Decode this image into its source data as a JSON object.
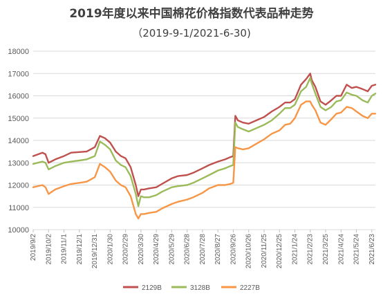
{
  "chart_data": {
    "type": "line",
    "title": "2019年度以来中国棉花价格指数代表品种走势",
    "subtitle": "（2019-9-1/2021-6-30)",
    "xlabel": "",
    "ylabel": "",
    "ylim": [
      10000,
      18000
    ],
    "yticks": [
      10000,
      11000,
      12000,
      13000,
      14000,
      15000,
      16000,
      17000,
      18000
    ],
    "grid": true,
    "legend_position": "bottom",
    "x_tick_labels": [
      "2019/9/2",
      "2019/10/2",
      "2019/11/1",
      "2019/12/1",
      "2019/12/31",
      "2020/1/30",
      "2020/2/29",
      "2020/3/30",
      "2020/4/29",
      "2020/5/29",
      "2020/6/28",
      "2020/7/28",
      "2020/8/27",
      "2020/9/26",
      "2020/10/26",
      "2020/11/25",
      "2020/12/25",
      "2021/1/24",
      "2021/2/23",
      "2021/3/25",
      "2021/4/24",
      "2021/5/24",
      "2021/6/23"
    ],
    "x": [
      "2019/9/2",
      "2019/9/20",
      "2019/9/26",
      "2019/10/2",
      "2019/10/15",
      "2019/11/1",
      "2019/11/15",
      "2019/12/1",
      "2019/12/15",
      "2019/12/31",
      "2020/1/10",
      "2020/1/20",
      "2020/1/30",
      "2020/2/10",
      "2020/2/20",
      "2020/2/29",
      "2020/3/10",
      "2020/3/20",
      "2020/3/25",
      "2020/3/30",
      "2020/4/5",
      "2020/4/15",
      "2020/4/29",
      "2020/5/10",
      "2020/5/29",
      "2020/6/10",
      "2020/6/28",
      "2020/7/10",
      "2020/7/28",
      "2020/8/10",
      "2020/8/27",
      "2020/9/10",
      "2020/9/20",
      "2020/9/26",
      "2020/9/30",
      "2020/10/5",
      "2020/10/15",
      "2020/10/26",
      "2020/11/10",
      "2020/11/25",
      "2020/12/10",
      "2020/12/25",
      "2021/1/5",
      "2021/1/15",
      "2021/1/24",
      "2021/2/5",
      "2021/2/15",
      "2021/2/23",
      "2021/2/26",
      "2021/3/5",
      "2021/3/15",
      "2021/3/25",
      "2021/4/5",
      "2021/4/15",
      "2021/4/24",
      "2021/5/5",
      "2021/5/15",
      "2021/5/24",
      "2021/6/5",
      "2021/6/15",
      "2021/6/23",
      "2021/6/30"
    ],
    "series": [
      {
        "name": "2129B",
        "color": "#c0504d",
        "values": [
          13300,
          13450,
          13380,
          13000,
          13150,
          13300,
          13450,
          13480,
          13500,
          13700,
          14200,
          14100,
          13900,
          13500,
          13300,
          13200,
          12800,
          12000,
          11500,
          11800,
          11800,
          11850,
          11900,
          12050,
          12300,
          12400,
          12450,
          12550,
          12750,
          12900,
          13050,
          13150,
          13250,
          13300,
          15100,
          14900,
          14800,
          14750,
          14900,
          15050,
          15300,
          15500,
          15700,
          15700,
          15850,
          16500,
          16750,
          17000,
          16700,
          16400,
          15750,
          15600,
          15800,
          16000,
          16000,
          16500,
          16350,
          16400,
          16300,
          16200,
          16450,
          16500
        ]
      },
      {
        "name": "3128B",
        "color": "#9bbb59",
        "values": [
          12950,
          13050,
          13000,
          12700,
          12850,
          13000,
          13050,
          13100,
          13150,
          13300,
          13950,
          13800,
          13600,
          13100,
          12900,
          12800,
          12400,
          11600,
          11050,
          11500,
          11450,
          11450,
          11550,
          11700,
          11900,
          11950,
          12000,
          12100,
          12300,
          12450,
          12650,
          12750,
          12850,
          12900,
          14800,
          14600,
          14500,
          14400,
          14550,
          14700,
          14900,
          15200,
          15450,
          15450,
          15600,
          16200,
          16400,
          16800,
          16550,
          16100,
          15500,
          15350,
          15500,
          15750,
          15800,
          16150,
          16050,
          16000,
          15800,
          15700,
          16000,
          16100
        ]
      },
      {
        "name": "2227B",
        "color": "#f79646",
        "values": [
          11900,
          12000,
          11900,
          11600,
          11800,
          11950,
          12050,
          12100,
          12150,
          12350,
          12950,
          12800,
          12600,
          12200,
          12000,
          11900,
          11500,
          10700,
          10500,
          10700,
          10700,
          10750,
          10800,
          10950,
          11150,
          11250,
          11350,
          11450,
          11650,
          11850,
          12000,
          12000,
          12050,
          12100,
          13700,
          13650,
          13600,
          13650,
          13850,
          14050,
          14300,
          14450,
          14700,
          14750,
          15000,
          15600,
          15750,
          15750,
          15600,
          15350,
          14800,
          14700,
          14950,
          15200,
          15250,
          15500,
          15450,
          15300,
          15100,
          15000,
          15200,
          15200
        ]
      }
    ]
  }
}
